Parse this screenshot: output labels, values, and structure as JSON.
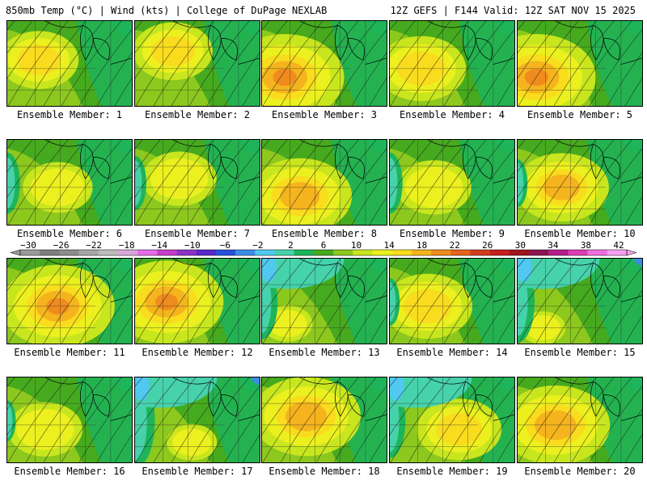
{
  "header": {
    "left": "850mb Temp (°C) | Wind (kts) | College of DuPage NEXLAB",
    "right": "12Z GEFS | F144 Valid: 12Z SAT NOV 15 2025"
  },
  "colorbar": {
    "labels": [
      "-30",
      "-26",
      "-22",
      "-18",
      "-14",
      "-10",
      "-6",
      "-2",
      "2",
      "6",
      "10",
      "14",
      "18",
      "22",
      "26",
      "30",
      "34",
      "38",
      "42"
    ],
    "colors": [
      "#9a9a9a",
      "#7e7e7e",
      "#8c8c8c",
      "#a6a6a6",
      "#bcbcbc",
      "#d9a6d9",
      "#e66ce6",
      "#c83cc8",
      "#8c32c8",
      "#5a28c8",
      "#2850dc",
      "#3c8ce6",
      "#50c8f0",
      "#46d2aa",
      "#1eb45a",
      "#46aa1e",
      "#8cc81e",
      "#c8e61e",
      "#ebf01e",
      "#fadc1e",
      "#f5b41e",
      "#f08c1e",
      "#e6641e",
      "#d23c1e",
      "#c81e1e",
      "#a0141e",
      "#8c1450",
      "#b41e8c",
      "#dc3cb4",
      "#f06edc",
      "#f5a0f0"
    ]
  },
  "members": [
    {
      "label": "Ensemble Member: 1",
      "warm": 0.45,
      "cool": 0.2,
      "hot_x": 0.25,
      "hot_y": 0.45
    },
    {
      "label": "Ensemble Member: 2",
      "warm": 0.45,
      "cool": 0.2,
      "hot_x": 0.3,
      "hot_y": 0.35
    },
    {
      "label": "Ensemble Member: 3",
      "warm": 0.85,
      "cool": 0.15,
      "hot_x": 0.18,
      "hot_y": 0.65
    },
    {
      "label": "Ensemble Member: 4",
      "warm": 0.55,
      "cool": 0.2,
      "hot_x": 0.25,
      "hot_y": 0.55
    },
    {
      "label": "Ensemble Member: 5",
      "warm": 0.85,
      "cool": 0.15,
      "hot_x": 0.15,
      "hot_y": 0.65
    },
    {
      "label": "Ensemble Member: 6",
      "warm": 0.35,
      "cool": 0.45,
      "hot_x": 0.4,
      "hot_y": 0.55
    },
    {
      "label": "Ensemble Member: 7",
      "warm": 0.4,
      "cool": 0.4,
      "hot_x": 0.35,
      "hot_y": 0.45
    },
    {
      "label": "Ensemble Member: 8",
      "warm": 0.7,
      "cool": 0.15,
      "hot_x": 0.3,
      "hot_y": 0.65
    },
    {
      "label": "Ensemble Member: 9",
      "warm": 0.4,
      "cool": 0.45,
      "hot_x": 0.35,
      "hot_y": 0.55
    },
    {
      "label": "Ensemble Member: 10",
      "warm": 0.6,
      "cool": 0.35,
      "hot_x": 0.35,
      "hot_y": 0.55
    },
    {
      "label": "Ensemble Member: 11",
      "warm": 0.8,
      "cool": 0.1,
      "hot_x": 0.4,
      "hot_y": 0.55
    },
    {
      "label": "Ensemble Member: 12",
      "warm": 0.8,
      "cool": 0.1,
      "hot_x": 0.25,
      "hot_y": 0.5
    },
    {
      "label": "Ensemble Member: 13",
      "warm": 0.15,
      "cool": 0.55,
      "hot_x": 0.2,
      "hot_y": 0.75
    },
    {
      "label": "Ensemble Member: 14",
      "warm": 0.55,
      "cool": 0.35,
      "hot_x": 0.3,
      "hot_y": 0.55
    },
    {
      "label": "Ensemble Member: 15",
      "warm": 0.1,
      "cool": 0.6,
      "hot_x": 0.2,
      "hot_y": 0.8
    },
    {
      "label": "Ensemble Member: 16",
      "warm": 0.4,
      "cool": 0.3,
      "hot_x": 0.3,
      "hot_y": 0.6
    },
    {
      "label": "Ensemble Member: 17",
      "warm": 0.15,
      "cool": 0.7,
      "hot_x": 0.45,
      "hot_y": 0.75
    },
    {
      "label": "Ensemble Member: 18",
      "warm": 0.75,
      "cool": 0.2,
      "hot_x": 0.35,
      "hot_y": 0.45
    },
    {
      "label": "Ensemble Member: 19",
      "warm": 0.5,
      "cool": 0.55,
      "hot_x": 0.55,
      "hot_y": 0.6
    },
    {
      "label": "Ensemble Member: 20",
      "warm": 0.75,
      "cool": 0.2,
      "hot_x": 0.3,
      "hot_y": 0.55
    }
  ]
}
